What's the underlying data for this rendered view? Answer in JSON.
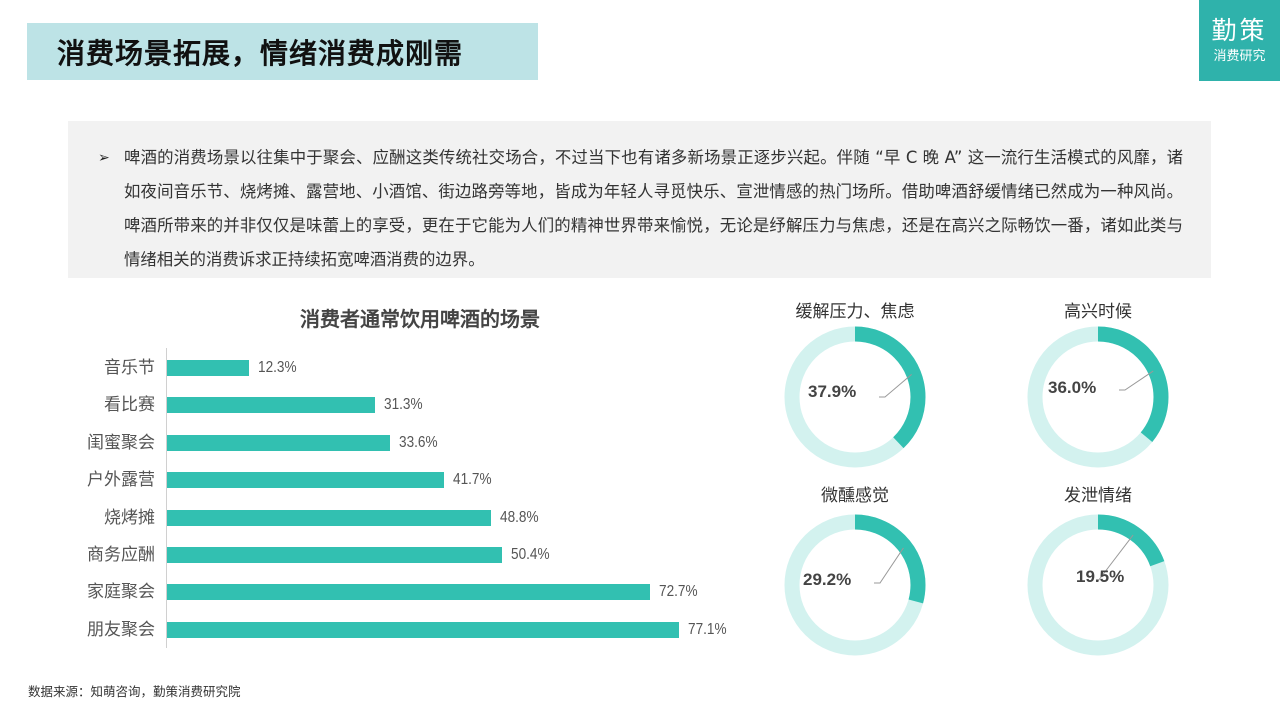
{
  "header": {
    "title": "消费场景拓展，情绪消费成刚需",
    "logo_main": "勤策",
    "logo_sub": "消费研究",
    "title_bg": "#bde3e6",
    "logo_bg": "#2fb2ab"
  },
  "intro": {
    "bullet": "➢",
    "text": "啤酒的消费场景以往集中于聚会、应酬这类传统社交场合，不过当下也有诸多新场景正逐步兴起。伴随 “早 C 晚 A” 这一流行生活模式的风靡，诸如夜间音乐节、烧烤摊、露营地、小酒馆、街边路旁等地，皆成为年轻人寻觅快乐、宣泄情感的热门场所。借助啤酒舒缓情绪已然成为一种风尚。啤酒所带来的并非仅仅是味蕾上的享受，更在于它能为人们的精神世界带来愉悦，无论是纾解压力与焦虑，还是在高兴之际畅饮一番，诸如此类与情绪相关的消费诉求正持续拓宽啤酒消费的边界。"
  },
  "chart_data": [
    {
      "type": "bar",
      "orientation": "horizontal",
      "title": "消费者通常饮用啤酒的场景",
      "xlabel": "",
      "ylabel": "",
      "categories": [
        "音乐节",
        "看比赛",
        "闺蜜聚会",
        "户外露营",
        "烧烤摊",
        "商务应酬",
        "家庭聚会",
        "朋友聚会"
      ],
      "values": [
        12.3,
        31.3,
        33.6,
        41.7,
        48.8,
        50.4,
        72.7,
        77.1
      ],
      "labels": [
        "12.3%",
        "31.3%",
        "33.6%",
        "41.7%",
        "48.8%",
        "50.4%",
        "72.7%",
        "77.1%"
      ],
      "unit": "%",
      "color": "#32c0b1",
      "grid": false,
      "legend": "none"
    },
    {
      "type": "pie",
      "subtype": "donut",
      "charts": [
        {
          "title": "缓解压力、焦虑",
          "value": 37.9,
          "label": "37.9%"
        },
        {
          "title": "高兴时候",
          "value": 36.0,
          "label": "36.0%"
        },
        {
          "title": "微醺感觉",
          "value": 29.2,
          "label": "29.2%"
        },
        {
          "title": "发泄情绪",
          "value": 19.5,
          "label": "19.5%"
        }
      ],
      "colors": {
        "value": "#32c0b1",
        "remainder": "#d3f2ef"
      }
    }
  ],
  "bars": {
    "title": "消费者通常饮用啤酒的场景",
    "items": [
      {
        "label": "音乐节",
        "value": 12.3,
        "text": "12.3%"
      },
      {
        "label": "看比赛",
        "value": 31.3,
        "text": "31.3%"
      },
      {
        "label": "闺蜜聚会",
        "value": 33.6,
        "text": "33.6%"
      },
      {
        "label": "户外露营",
        "value": 41.7,
        "text": "41.7%"
      },
      {
        "label": "烧烤摊",
        "value": 48.8,
        "text": "48.8%"
      },
      {
        "label": "商务应酬",
        "value": 50.4,
        "text": "50.4%"
      },
      {
        "label": "家庭聚会",
        "value": 72.7,
        "text": "72.7%"
      },
      {
        "label": "朋友聚会",
        "value": 77.1,
        "text": "77.1%"
      }
    ]
  },
  "donuts": [
    {
      "title": "缓解压力、焦虑",
      "value": 37.9,
      "text": "37.9%"
    },
    {
      "title": "高兴时候",
      "value": 36.0,
      "text": "36.0%"
    },
    {
      "title": "微醺感觉",
      "value": 29.2,
      "text": "29.2%"
    },
    {
      "title": "发泄情绪",
      "value": 19.5,
      "text": "19.5%"
    }
  ],
  "footer": {
    "source": "数据来源：知萌咨询，勤策消费研究院"
  }
}
